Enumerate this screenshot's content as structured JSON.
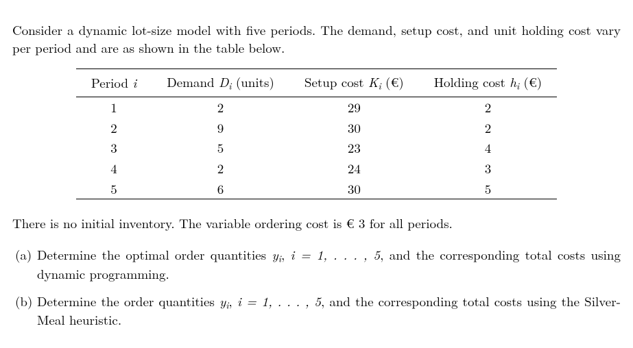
{
  "intro": "Consider a dynamic lot-size model with five periods. The demand, setup cost, and unit holding cost vary per period and are as shown in the table below.",
  "table": {
    "headers": {
      "period": "Period i",
      "demand_pre": "Demand ",
      "demand_sym": "D",
      "demand_sub": "i",
      "demand_post": " (units)",
      "setup_pre": "Setup cost ",
      "setup_sym": "K",
      "setup_sub": "i",
      "setup_post": " (€)",
      "hold_pre": "Holding cost ",
      "hold_sym": "h",
      "hold_sub": "i",
      "hold_post": " (€)"
    },
    "rows": [
      {
        "period": "1",
        "demand": "2",
        "setup": "29",
        "holding": "2"
      },
      {
        "period": "2",
        "demand": "9",
        "setup": "30",
        "holding": "2"
      },
      {
        "period": "3",
        "demand": "5",
        "setup": "23",
        "holding": "4"
      },
      {
        "period": "4",
        "demand": "2",
        "setup": "24",
        "holding": "3"
      },
      {
        "period": "5",
        "demand": "6",
        "setup": "30",
        "holding": "5"
      }
    ]
  },
  "note": "There is no initial inventory. The variable ordering cost is € 3 for all periods.",
  "questions": {
    "a": {
      "label": "(a)",
      "pre": "Determine the optimal order quantities ",
      "sym": "y",
      "sub": "i",
      "mid": ", ",
      "idx": "i = 1, . . . , 5",
      "post": ", and the corresponding total costs using dynamic programming."
    },
    "b": {
      "label": "(b)",
      "pre": "Determine the order quantities ",
      "sym": "y",
      "sub": "i",
      "mid": ", ",
      "idx": "i = 1, . . . , 5",
      "post": ", and the corresponding total costs using the Silver-Meal heuristic."
    }
  }
}
